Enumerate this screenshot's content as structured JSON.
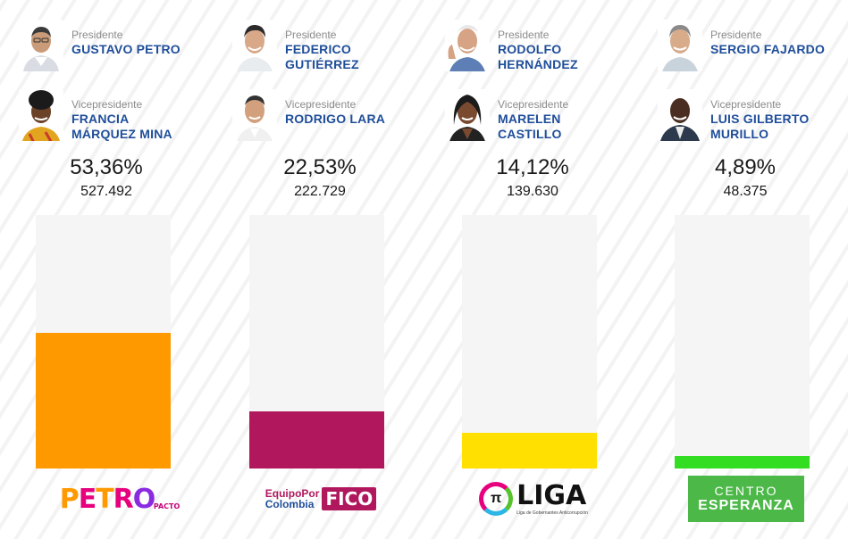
{
  "candidates": [
    {
      "president_role": "Presidente",
      "president_name": "GUSTAVO PETRO",
      "vp_role": "Vicepresidente",
      "vp_name": "FRANCIA\nMÁRQUEZ MINA",
      "percent": "53,36%",
      "votes": "527.492",
      "bar_color": "#ff9900",
      "logo_text": "PETRO",
      "logo_tag": "PACTO"
    },
    {
      "president_role": "Presidente",
      "president_name": "FEDERICO\nGUTIÉRREZ",
      "vp_role": "Vicepresidente",
      "vp_name": "RODRIGO LARA",
      "percent": "22,53%",
      "votes": "222.729",
      "bar_color": "#b0175d",
      "logo_top": "EquipoPor",
      "logo_bottom": "Colombia",
      "logo_text": "FICO"
    },
    {
      "president_role": "Presidente",
      "president_name": "RODOLFO\nHERNÁNDEZ",
      "vp_role": "Vicepresidente",
      "vp_name": "MARELEN\nCASTILLO",
      "percent": "14,12%",
      "votes": "139.630",
      "bar_color": "#ffe000",
      "logo_symbol": "π",
      "logo_text": "LIGA",
      "logo_sub": "Liga de Gobernantes Anticorrupción"
    },
    {
      "president_role": "Presidente",
      "president_name": "SERGIO FAJARDO",
      "vp_role": "Vicepresidente",
      "vp_name": "LUIS GILBERTO\nMURILLO",
      "percent": "4,89%",
      "votes": "48.375",
      "bar_color": "#33dd22",
      "logo_top": "CENTRO",
      "logo_text": "ESPERANZA"
    }
  ],
  "chart_data": {
    "type": "bar",
    "categories": [
      "GUSTAVO PETRO",
      "FEDERICO GUTIÉRREZ",
      "RODOLFO HERNÁNDEZ",
      "SERGIO FAJARDO"
    ],
    "values": [
      53.36,
      22.53,
      14.12,
      4.89
    ],
    "votes": [
      527492,
      222729,
      139630,
      48375
    ],
    "ylim": [
      0,
      100
    ],
    "colors": [
      "#ff9900",
      "#b0175d",
      "#ffe000",
      "#33dd22"
    ],
    "title": "",
    "xlabel": "",
    "ylabel": "",
    "grid": false,
    "legend": "none"
  }
}
